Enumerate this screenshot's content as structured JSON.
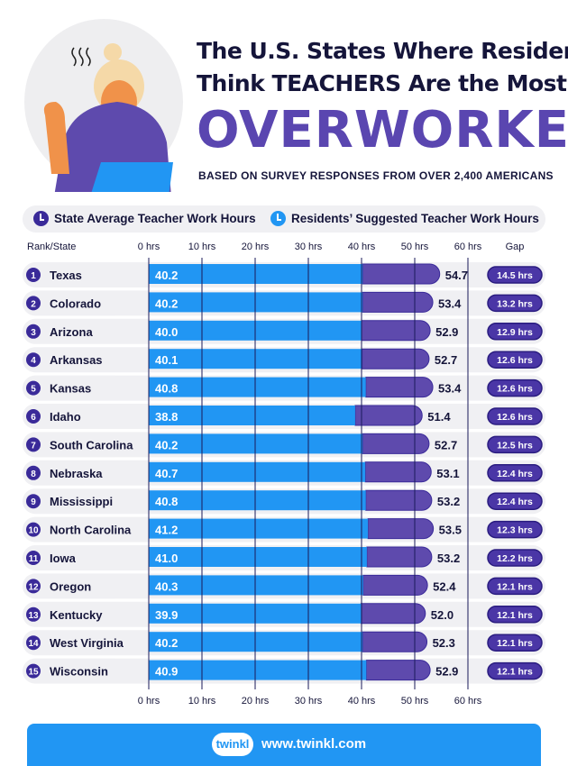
{
  "header": {
    "title_line1": "The U.S. States Where Residents",
    "title_line2": "Think TEACHERS Are the Most",
    "title_line3": "OVERWORKED",
    "subtitle": "BASED ON SURVEY RESPONSES FROM OVER 2,400 AMERICANS"
  },
  "legend": [
    {
      "label": "State Average Teacher Work Hours",
      "icon": "clock-icon",
      "color": "#3a2a99"
    },
    {
      "label": "Residents’ Suggested Teacher Work Hours",
      "icon": "clock-icon",
      "color": "#2196f3"
    }
  ],
  "chart_data": {
    "type": "bar",
    "orientation": "horizontal",
    "stacked_overlay": true,
    "column_headers": {
      "rank_state": "Rank/State",
      "gap": "Gap"
    },
    "xticks": [
      "0 hrs",
      "10 hrs",
      "20 hrs",
      "30 hrs",
      "40 hrs",
      "50 hrs",
      "60 hrs"
    ],
    "xlim": [
      0,
      60
    ],
    "grid": true,
    "colors": {
      "suggested": "#2196f3",
      "average": "#5e4aad",
      "gap_badge": "#4a36a6"
    },
    "rows": [
      {
        "rank": "1",
        "state": "Texas",
        "suggested": 40.2,
        "average": 54.7,
        "gap": "14.5 hrs"
      },
      {
        "rank": "2",
        "state": "Colorado",
        "suggested": 40.2,
        "average": 53.4,
        "gap": "13.2 hrs"
      },
      {
        "rank": "3",
        "state": "Arizona",
        "suggested": 40.0,
        "average": 52.9,
        "gap": "12.9 hrs"
      },
      {
        "rank": "4",
        "state": "Arkansas",
        "suggested": 40.1,
        "average": 52.7,
        "gap": "12.6 hrs"
      },
      {
        "rank": "5",
        "state": "Kansas",
        "suggested": 40.8,
        "average": 53.4,
        "gap": "12.6 hrs"
      },
      {
        "rank": "6",
        "state": "Idaho",
        "suggested": 38.8,
        "average": 51.4,
        "gap": "12.6 hrs"
      },
      {
        "rank": "7",
        "state": "South Carolina",
        "suggested": 40.2,
        "average": 52.7,
        "gap": "12.5 hrs"
      },
      {
        "rank": "8",
        "state": "Nebraska",
        "suggested": 40.7,
        "average": 53.1,
        "gap": "12.4 hrs"
      },
      {
        "rank": "9",
        "state": "Mississippi",
        "suggested": 40.8,
        "average": 53.2,
        "gap": "12.4 hrs"
      },
      {
        "rank": "10",
        "state": "North Carolina",
        "suggested": 41.2,
        "average": 53.5,
        "gap": "12.3 hrs"
      },
      {
        "rank": "11",
        "state": "Iowa",
        "suggested": 41.0,
        "average": 53.2,
        "gap": "12.2 hrs"
      },
      {
        "rank": "12",
        "state": "Oregon",
        "suggested": 40.3,
        "average": 52.4,
        "gap": "12.1 hrs"
      },
      {
        "rank": "13",
        "state": "Kentucky",
        "suggested": 39.9,
        "average": 52.0,
        "gap": "12.1 hrs"
      },
      {
        "rank": "14",
        "state": "West Virginia",
        "suggested": 40.2,
        "average": 52.3,
        "gap": "12.1 hrs"
      },
      {
        "rank": "15",
        "state": "Wisconsin",
        "suggested": 40.9,
        "average": 52.9,
        "gap": "12.1 hrs"
      }
    ]
  },
  "footer": {
    "logo": "twinkl",
    "url": "www.twinkl.com"
  }
}
